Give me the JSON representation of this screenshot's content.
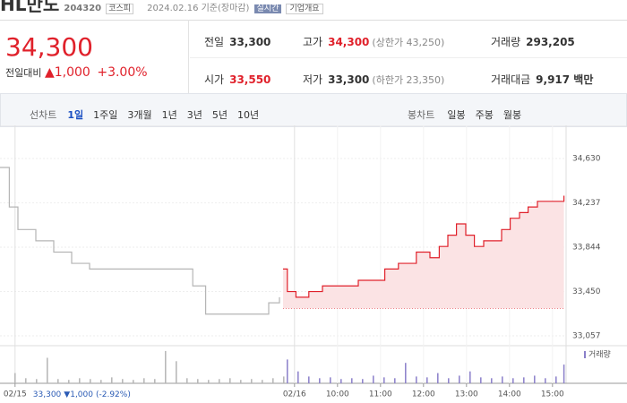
{
  "header": {
    "name": "HL만도",
    "code": "204320",
    "market": "코스피",
    "date": "2024.02.16 기준(장마감)",
    "realtime": "실시간",
    "company": "기업개요"
  },
  "summary": {
    "price": "34,300",
    "change_label": "전일대비",
    "change": "▲1,000",
    "change_pct": "+3.00%"
  },
  "stats": [
    {
      "label": "전일",
      "value": "33,300"
    },
    {
      "label": "고가",
      "value": "34,300",
      "sub": "(상한가 43,250)"
    },
    {
      "label": "거래량",
      "value": "293,205"
    },
    {
      "label": "시가",
      "value": "33,550"
    },
    {
      "label": "저가",
      "value": "33,300",
      "sub": "(하한가 23,350)"
    },
    {
      "label": "거래대금",
      "value": "9,917 백만"
    }
  ],
  "tabs": {
    "line_label": "선차트",
    "line": [
      "1일",
      "1주일",
      "3개월",
      "1년",
      "3년",
      "5년",
      "10년"
    ],
    "candle_label": "봉차트",
    "candle": [
      "일봉",
      "주봉",
      "월봉"
    ]
  },
  "chart_data": {
    "type": "line",
    "series": [
      {
        "color": "#b5b5b5",
        "x": [
          -21,
          -8,
          4,
          29,
          54,
          79,
          104,
          166,
          229,
          248,
          266,
          291,
          316,
          354,
          369
        ],
        "values": [
          34550,
          34200,
          34000,
          33900,
          33800,
          33700,
          33650,
          33650,
          33650,
          33500,
          33250,
          33250,
          33250,
          33350,
          33400
        ]
      },
      {
        "color": "#e0212b",
        "x": [
          374,
          380,
          392,
          410,
          429,
          454,
          479,
          504,
          516,
          535,
          560,
          579,
          592,
          604,
          616,
          629,
          641,
          654,
          666,
          679,
          691,
          704,
          716,
          729,
          741,
          754,
          762,
          766
        ],
        "values": [
          33650,
          33450,
          33400,
          33450,
          33500,
          33500,
          33550,
          33550,
          33650,
          33700,
          33800,
          33750,
          33850,
          33950,
          34050,
          33950,
          33850,
          33900,
          33900,
          34000,
          34100,
          34150,
          34200,
          34250,
          34250,
          34250,
          34250,
          34300
        ]
      }
    ],
    "reference_line": 33300,
    "xlim": [
      -21,
      769
    ],
    "ylim": [
      32978,
      34844
    ],
    "xticks": [
      {
        "value": 0,
        "label": "02/15"
      },
      {
        "value": 390,
        "label": "02/16"
      },
      {
        "value": 450,
        "label": "10:00"
      },
      {
        "value": 510,
        "label": "11:00"
      },
      {
        "value": 570,
        "label": "12:00"
      },
      {
        "value": 630,
        "label": "13:00"
      },
      {
        "value": 690,
        "label": "14:00"
      },
      {
        "value": 750,
        "label": "15:00"
      }
    ],
    "yticks": [
      {
        "value": 33057,
        "label": "33,057"
      },
      {
        "value": 33450,
        "label": "33,450"
      },
      {
        "value": 33844,
        "label": "33,844"
      },
      {
        "value": 34237,
        "label": "34,237"
      },
      {
        "value": 34630,
        "label": "34,630"
      }
    ],
    "prev_close_note": {
      "price": "33,300",
      "change": "▼1,000",
      "pct": "(-2.92%)"
    },
    "volume": {
      "label": "거래량",
      "ylim": [
        0,
        40
      ],
      "series": [
        {
          "color": "#b5b5b5",
          "x": [
            0,
            15,
            30,
            45,
            60,
            75,
            90,
            105,
            120,
            135,
            150,
            165,
            180,
            195,
            210,
            225,
            240,
            255,
            270,
            285,
            300,
            315,
            330,
            345,
            360,
            375
          ],
          "values": [
            12,
            6,
            5,
            30,
            5,
            4,
            6,
            5,
            4,
            7,
            5,
            4,
            6,
            5,
            38,
            26,
            6,
            5,
            4,
            5,
            6,
            4,
            5,
            4,
            6,
            8
          ]
        },
        {
          "color": "#8a7fc9",
          "x": [
            380,
            395,
            410,
            425,
            440,
            455,
            470,
            485,
            500,
            515,
            530,
            545,
            560,
            575,
            590,
            605,
            620,
            635,
            650,
            665,
            680,
            695,
            710,
            725,
            740,
            755,
            766
          ],
          "values": [
            28,
            14,
            8,
            6,
            7,
            5,
            6,
            5,
            9,
            7,
            6,
            24,
            8,
            7,
            12,
            6,
            9,
            14,
            7,
            6,
            8,
            6,
            7,
            9,
            6,
            8,
            22
          ]
        }
      ]
    }
  }
}
